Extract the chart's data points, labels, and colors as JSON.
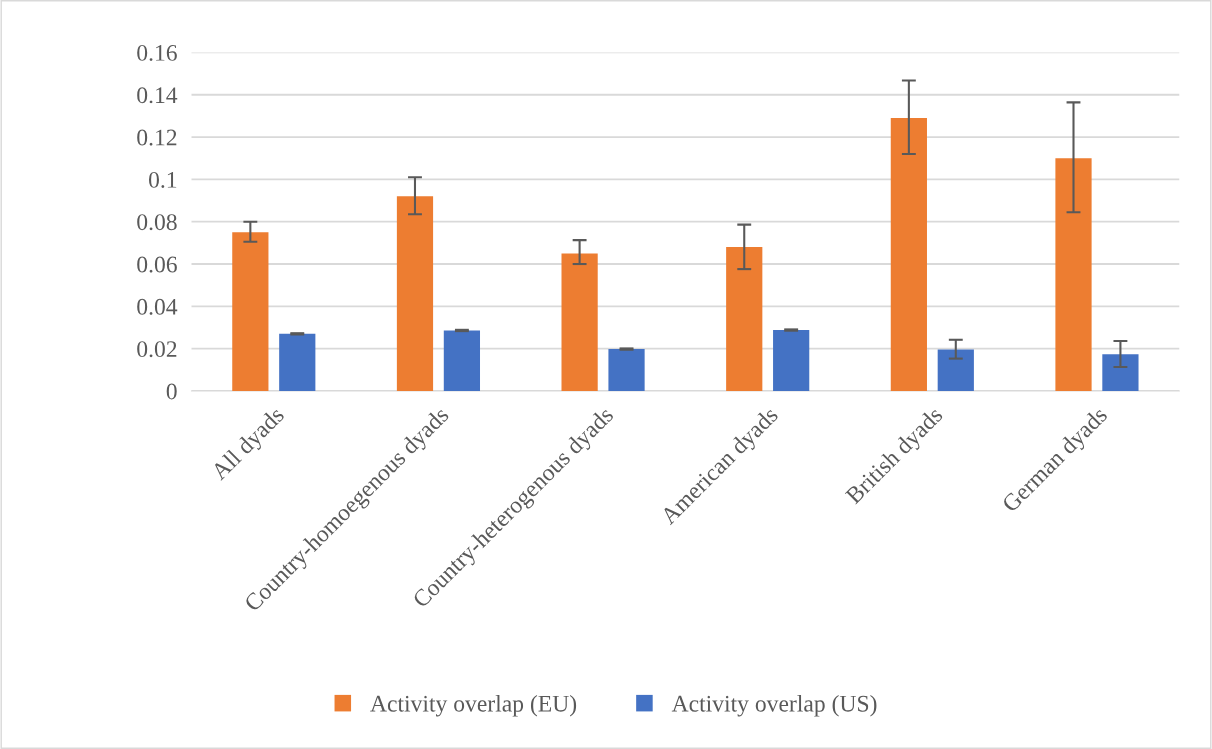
{
  "chart_data": {
    "type": "bar",
    "categories": [
      "All dyads",
      "Country-homoegenous dyads",
      "Country-heterogenous dyads",
      "American dyads",
      "British dyads",
      "German dyads"
    ],
    "series": [
      {
        "name": "Activity overlap (EU)",
        "color": "#ed7d31",
        "values": [
          0.075,
          0.092,
          0.065,
          0.068,
          0.129,
          0.11
        ],
        "errors": [
          [
            0.0705,
            0.08
          ],
          [
            0.0835,
            0.101
          ],
          [
            0.06,
            0.0713
          ],
          [
            0.0576,
            0.0786
          ],
          [
            0.112,
            0.1467
          ],
          [
            0.0845,
            0.1364
          ]
        ]
      },
      {
        "name": "Activity overlap (US)",
        "color": "#4472c4",
        "values": [
          0.027,
          0.0286,
          0.0198,
          0.0288,
          0.0196,
          0.0173
        ],
        "errors": [
          [
            0.0267,
            0.0273
          ],
          [
            0.0283,
            0.0289
          ],
          [
            0.0195,
            0.0201
          ],
          [
            0.0285,
            0.0291
          ],
          [
            0.0153,
            0.0242
          ],
          [
            0.0113,
            0.0236
          ]
        ]
      }
    ],
    "ylim": [
      0,
      0.16
    ],
    "yticks": [
      0,
      0.02,
      0.04,
      0.06,
      0.08,
      0.1,
      0.12,
      0.14,
      0.16
    ],
    "grid": "y",
    "legend": "bottom"
  }
}
